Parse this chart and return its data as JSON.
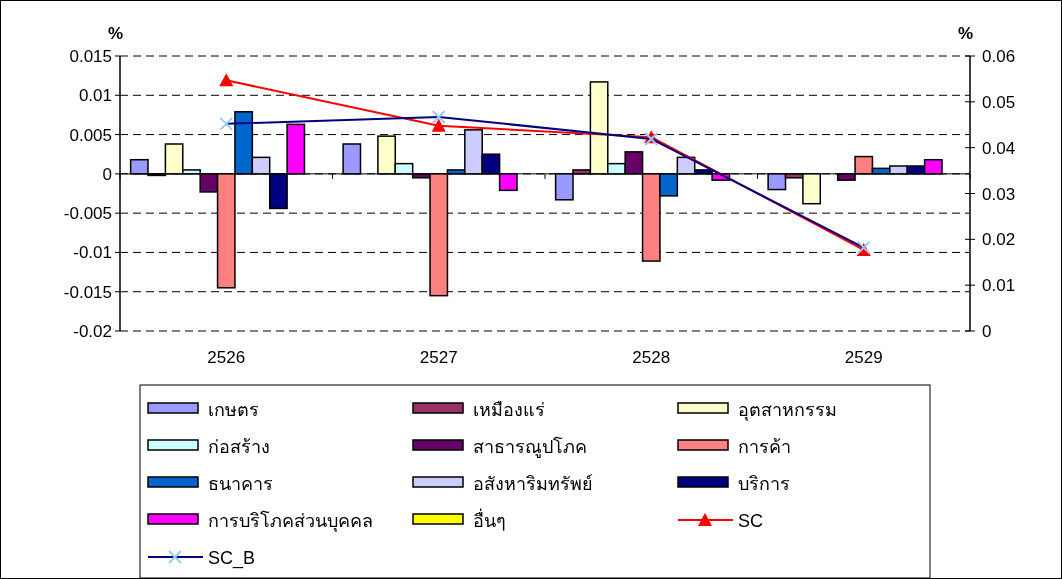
{
  "chart_data": {
    "type": "bar",
    "ylabel": "%",
    "y2label": "%",
    "categories": [
      "2526",
      "2527",
      "2528",
      "2529"
    ],
    "ylim": [
      -0.02,
      0.015
    ],
    "yticks": [
      -0.02,
      -0.015,
      -0.01,
      -0.005,
      0,
      0.005,
      0.01,
      0.015
    ],
    "y2lim": [
      0,
      0.06
    ],
    "y2ticks": [
      0,
      0.01,
      0.02,
      0.03,
      0.04,
      0.05,
      0.06
    ],
    "grid": "y",
    "legend": "bottom",
    "series": [
      {
        "name": "เกษตร",
        "color": "#9999ff",
        "values": [
          0.0018,
          0.0038,
          -0.0033,
          -0.002
        ]
      },
      {
        "name": "เหมืองแร่",
        "color": "#993366",
        "values": [
          -0.0002,
          null,
          0.0005,
          -0.0005
        ]
      },
      {
        "name": "อุตสาหกรรม",
        "color": "#ffffcc",
        "values": [
          0.0038,
          0.0048,
          0.0117,
          -0.0038
        ]
      },
      {
        "name": "ก่อสร้าง",
        "color": "#ccffff",
        "values": [
          0.0005,
          0.0013,
          0.0013,
          null
        ]
      },
      {
        "name": "สาธารณูปโภค",
        "color": "#660066",
        "values": [
          -0.0023,
          -0.0005,
          0.0028,
          -0.0008
        ]
      },
      {
        "name": "การค้า",
        "color": "#ff8080",
        "values": [
          -0.0145,
          -0.0155,
          -0.0111,
          0.0022
        ]
      },
      {
        "name": "ธนาคาร",
        "color": "#0066cc",
        "values": [
          0.0079,
          0.0005,
          -0.0028,
          0.0007
        ]
      },
      {
        "name": "อสังหาริมทรัพย์",
        "color": "#ccccff",
        "values": [
          0.0021,
          0.0056,
          0.0021,
          0.001
        ]
      },
      {
        "name": "บริการ",
        "color": "#000080",
        "values": [
          -0.0044,
          0.0025,
          0.0005,
          0.001
        ]
      },
      {
        "name": "การบริโภคส่วนบุคคล",
        "color": "#ff00ff",
        "values": [
          0.0063,
          -0.0021,
          -0.0008,
          0.0018
        ]
      },
      {
        "name": "อื่นๆ",
        "color": "#ffff00",
        "values": [
          null,
          null,
          null,
          null
        ]
      },
      {
        "name": "SC",
        "type": "line",
        "axis": "y2",
        "marker": "triangle",
        "color": "#ff0000",
        "values": [
          0.0547,
          0.0448,
          0.0423,
          0.0177
        ]
      },
      {
        "name": "SC_B",
        "type": "line",
        "axis": "y2",
        "marker": "cross",
        "color": "#000080",
        "values": [
          0.0452,
          0.0467,
          0.0419,
          0.0182
        ]
      }
    ]
  }
}
